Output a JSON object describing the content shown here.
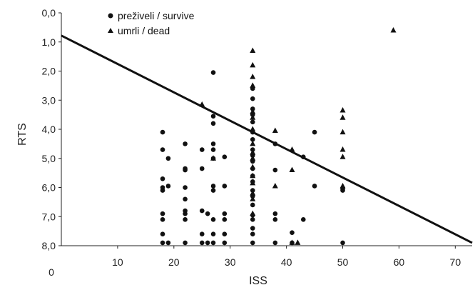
{
  "chart_data": {
    "type": "scatter",
    "title": "",
    "xlabel": "ISS",
    "ylabel": "RTS",
    "xlim": [
      0,
      73
    ],
    "ylim": [
      0,
      8
    ],
    "y_inverted": true,
    "grid": false,
    "legend_position": "top-left",
    "x_ticks": [
      "0",
      "10",
      "20",
      "30",
      "40",
      "50",
      "60",
      "70"
    ],
    "y_ticks": [
      "0,0",
      "1,0",
      "2,0",
      "3,0",
      "4,0",
      "5,0",
      "6,0",
      "7,0",
      "8,0"
    ],
    "series": [
      {
        "name": "preživeli / survive",
        "marker": "circle",
        "points": [
          [
            18,
            4.1
          ],
          [
            18,
            4.7
          ],
          [
            18,
            5.7
          ],
          [
            18,
            6.0
          ],
          [
            18,
            6.1
          ],
          [
            18,
            6.9
          ],
          [
            18,
            7.1
          ],
          [
            18,
            7.6
          ],
          [
            18,
            7.9
          ],
          [
            19,
            5.0
          ],
          [
            19,
            5.95
          ],
          [
            19,
            7.9
          ],
          [
            22,
            4.5
          ],
          [
            22,
            5.35
          ],
          [
            22,
            5.4
          ],
          [
            22,
            6.0
          ],
          [
            22,
            6.4
          ],
          [
            22,
            6.8
          ],
          [
            22,
            6.9
          ],
          [
            22,
            7.1
          ],
          [
            22,
            7.9
          ],
          [
            25,
            4.7
          ],
          [
            25,
            5.35
          ],
          [
            25,
            6.8
          ],
          [
            25,
            7.6
          ],
          [
            25,
            7.9
          ],
          [
            26,
            6.9
          ],
          [
            26,
            7.9
          ],
          [
            27,
            2.05
          ],
          [
            27,
            3.55
          ],
          [
            27,
            3.8
          ],
          [
            27,
            4.5
          ],
          [
            27,
            4.7
          ],
          [
            27,
            5.0
          ],
          [
            27,
            5.95
          ],
          [
            27,
            6.1
          ],
          [
            27,
            7.1
          ],
          [
            27,
            7.6
          ],
          [
            27,
            7.9
          ],
          [
            29,
            4.95
          ],
          [
            29,
            5.95
          ],
          [
            29,
            6.9
          ],
          [
            29,
            7.1
          ],
          [
            29,
            7.6
          ],
          [
            29,
            7.9
          ],
          [
            34,
            2.6
          ],
          [
            34,
            2.95
          ],
          [
            34,
            3.3
          ],
          [
            34,
            3.5
          ],
          [
            34,
            3.75
          ],
          [
            34,
            4.1
          ],
          [
            34,
            4.35
          ],
          [
            34,
            4.7
          ],
          [
            34,
            4.9
          ],
          [
            34,
            5.1
          ],
          [
            34,
            5.35
          ],
          [
            34,
            5.6
          ],
          [
            34,
            5.8
          ],
          [
            34,
            6.1
          ],
          [
            34,
            6.3
          ],
          [
            34,
            6.6
          ],
          [
            34,
            6.95
          ],
          [
            34,
            7.1
          ],
          [
            34,
            7.4
          ],
          [
            34,
            7.6
          ],
          [
            34,
            7.9
          ],
          [
            38,
            4.5
          ],
          [
            38,
            5.4
          ],
          [
            38,
            6.9
          ],
          [
            38,
            7.1
          ],
          [
            38,
            7.9
          ],
          [
            41,
            7.55
          ],
          [
            41,
            7.9
          ],
          [
            43,
            4.95
          ],
          [
            43,
            7.1
          ],
          [
            45,
            4.1
          ],
          [
            45,
            5.95
          ],
          [
            50,
            6.05
          ],
          [
            50,
            6.1
          ],
          [
            50,
            7.9
          ]
        ]
      },
      {
        "name": "umrli / dead",
        "marker": "triangle",
        "points": [
          [
            25,
            3.15
          ],
          [
            27,
            5.0
          ],
          [
            34,
            1.3
          ],
          [
            34,
            1.8
          ],
          [
            34,
            2.2
          ],
          [
            34,
            2.5
          ],
          [
            34,
            3.4
          ],
          [
            34,
            3.6
          ],
          [
            34,
            4.0
          ],
          [
            34,
            4.5
          ],
          [
            34,
            4.8
          ],
          [
            34,
            5.0
          ],
          [
            34,
            5.3
          ],
          [
            34,
            5.6
          ],
          [
            34,
            5.85
          ],
          [
            34,
            6.2
          ],
          [
            34,
            6.4
          ],
          [
            34,
            6.9
          ],
          [
            38,
            4.05
          ],
          [
            38,
            5.95
          ],
          [
            41,
            4.7
          ],
          [
            41,
            5.4
          ],
          [
            41,
            7.9
          ],
          [
            42,
            7.9
          ],
          [
            50,
            3.35
          ],
          [
            50,
            3.6
          ],
          [
            50,
            4.1
          ],
          [
            50,
            4.7
          ],
          [
            50,
            4.95
          ],
          [
            50,
            5.95
          ],
          [
            59,
            0.6
          ]
        ]
      }
    ],
    "trend_line": {
      "x": [
        0,
        73
      ],
      "y": [
        0.78,
        7.9
      ]
    }
  }
}
